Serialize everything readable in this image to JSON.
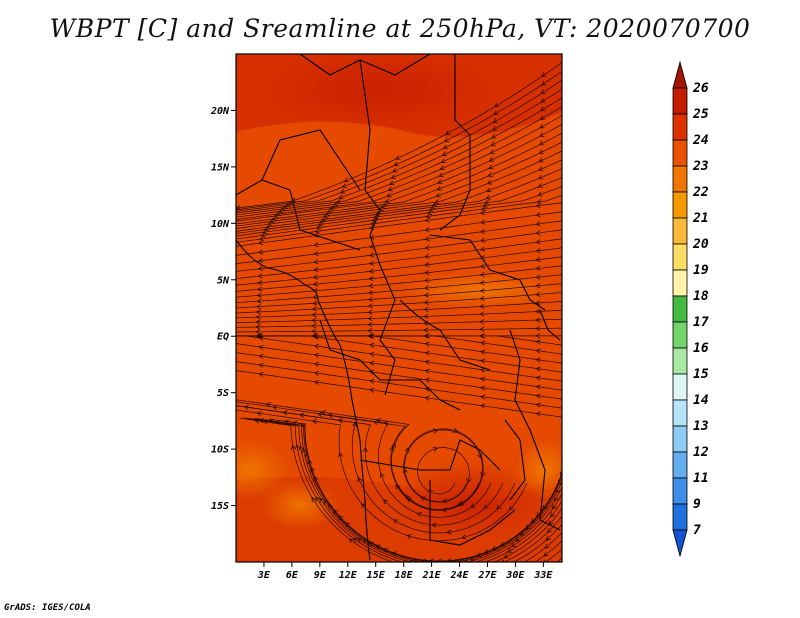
{
  "title": "WBPT [C] and Sreamline at 250hPa, VT: 2020070700",
  "footer": "GrADS: IGES/COLA",
  "map": {
    "lon_range": [
      0,
      35
    ],
    "lat_range": [
      -20,
      25
    ],
    "lat_ticks": [
      {
        "value": 20,
        "label": "20N"
      },
      {
        "value": 15,
        "label": "15N"
      },
      {
        "value": 10,
        "label": "10N"
      },
      {
        "value": 5,
        "label": "5N"
      },
      {
        "value": 0,
        "label": "EQ"
      },
      {
        "value": -5,
        "label": "5S"
      },
      {
        "value": -10,
        "label": "10S"
      },
      {
        "value": -15,
        "label": "15S"
      }
    ],
    "lon_ticks": [
      {
        "value": 3,
        "label": "3E"
      },
      {
        "value": 6,
        "label": "6E"
      },
      {
        "value": 9,
        "label": "9E"
      },
      {
        "value": 12,
        "label": "12E"
      },
      {
        "value": 15,
        "label": "15E"
      },
      {
        "value": 18,
        "label": "18E"
      },
      {
        "value": 21,
        "label": "21E"
      },
      {
        "value": 24,
        "label": "24E"
      },
      {
        "value": 27,
        "label": "27E"
      },
      {
        "value": 30,
        "label": "30E"
      },
      {
        "value": 33,
        "label": "33E"
      }
    ]
  },
  "colorbar": {
    "labels": [
      "26",
      "25",
      "24",
      "23",
      "22",
      "21",
      "20",
      "19",
      "18",
      "17",
      "16",
      "15",
      "14",
      "13",
      "12",
      "11",
      "9",
      "7"
    ],
    "colors": [
      "#a51400",
      "#c31c00",
      "#dc3200",
      "#e95300",
      "#f07800",
      "#f59b00",
      "#f8b83a",
      "#fcdd68",
      "#fff3aa",
      "#44b840",
      "#72d46a",
      "#a9e8a3",
      "#dff6f6",
      "#b7e3fb",
      "#8ccbf6",
      "#64aef0",
      "#3f8ee8",
      "#2170dd",
      "#1553d0"
    ]
  }
}
